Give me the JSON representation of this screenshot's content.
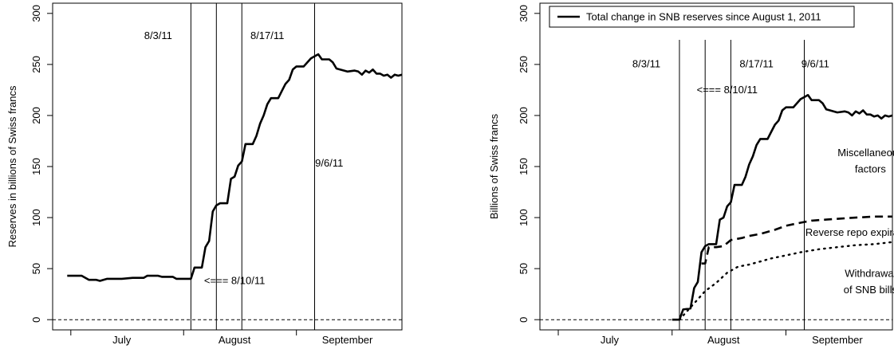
{
  "chart_data": [
    {
      "type": "line",
      "ylabel": "Reserves in billions of Swiss francs",
      "ylim": [
        -10,
        310
      ],
      "xlim": [
        "2011-06-26",
        "2011-09-30"
      ],
      "y_ticks": [
        0,
        50,
        100,
        150,
        200,
        250,
        300
      ],
      "x_tick_labels": [
        {
          "label": "July",
          "date": "2011-07-15"
        },
        {
          "label": "August",
          "date": "2011-08-15"
        },
        {
          "label": "September",
          "date": "2011-09-15"
        }
      ],
      "x_boundaries": [
        "2011-07-01",
        "2011-08-01",
        "2011-09-01"
      ],
      "zero_line": true,
      "vertical_lines": [
        "2011-08-03",
        "2011-08-10",
        "2011-08-17",
        "2011-09-06"
      ],
      "annotations": [
        {
          "text": "8/3/11",
          "x": "2011-07-25",
          "y": 275
        },
        {
          "text": "8/17/11",
          "x": "2011-08-24",
          "y": 275
        },
        {
          "text": "9/6/11",
          "x": "2011-09-10",
          "y": 150
        },
        {
          "text": "<=== 8/10/11",
          "x": "2011-08-15",
          "y": 35
        }
      ],
      "series": [
        {
          "style": "solid",
          "points": [
            [
              "2011-06-30",
              43
            ],
            [
              "2011-07-04",
              43
            ],
            [
              "2011-07-06",
              39
            ],
            [
              "2011-07-08",
              39
            ],
            [
              "2011-07-09",
              38
            ],
            [
              "2011-07-11",
              40
            ],
            [
              "2011-07-15",
              40
            ],
            [
              "2011-07-18",
              41
            ],
            [
              "2011-07-21",
              41
            ],
            [
              "2011-07-22",
              43
            ],
            [
              "2011-07-25",
              43
            ],
            [
              "2011-07-26",
              42
            ],
            [
              "2011-07-29",
              42
            ],
            [
              "2011-07-30",
              40
            ],
            [
              "2011-08-01",
              40
            ],
            [
              "2011-08-02",
              40
            ],
            [
              "2011-08-03",
              40
            ],
            [
              "2011-08-04",
              51
            ],
            [
              "2011-08-06",
              51
            ],
            [
              "2011-08-07",
              71
            ],
            [
              "2011-08-08",
              77
            ],
            [
              "2011-08-09",
              106
            ],
            [
              "2011-08-10",
              112
            ],
            [
              "2011-08-11",
              114
            ],
            [
              "2011-08-13",
              114
            ],
            [
              "2011-08-14",
              138
            ],
            [
              "2011-08-15",
              140
            ],
            [
              "2011-08-16",
              151
            ],
            [
              "2011-08-17",
              155
            ],
            [
              "2011-08-18",
              172
            ],
            [
              "2011-08-20",
              172
            ],
            [
              "2011-08-21",
              180
            ],
            [
              "2011-08-22",
              192
            ],
            [
              "2011-08-23",
              200
            ],
            [
              "2011-08-24",
              211
            ],
            [
              "2011-08-25",
              217
            ],
            [
              "2011-08-27",
              217
            ],
            [
              "2011-08-28",
              224
            ],
            [
              "2011-08-29",
              231
            ],
            [
              "2011-08-30",
              235
            ],
            [
              "2011-08-31",
              245
            ],
            [
              "2011-09-01",
              248
            ],
            [
              "2011-09-03",
              248
            ],
            [
              "2011-09-05",
              256
            ],
            [
              "2011-09-06",
              258
            ],
            [
              "2011-09-07",
              260
            ],
            [
              "2011-09-08",
              255
            ],
            [
              "2011-09-10",
              255
            ],
            [
              "2011-09-11",
              252
            ],
            [
              "2011-09-12",
              246
            ],
            [
              "2011-09-13",
              245
            ],
            [
              "2011-09-15",
              243
            ],
            [
              "2011-09-17",
              244
            ],
            [
              "2011-09-18",
              243
            ],
            [
              "2011-09-19",
              240
            ],
            [
              "2011-09-20",
              244
            ],
            [
              "2011-09-21",
              242
            ],
            [
              "2011-09-22",
              245
            ],
            [
              "2011-09-23",
              241
            ],
            [
              "2011-09-24",
              241
            ],
            [
              "2011-09-25",
              239
            ],
            [
              "2011-09-26",
              240
            ],
            [
              "2011-09-27",
              237
            ],
            [
              "2011-09-28",
              240
            ],
            [
              "2011-09-29",
              239
            ],
            [
              "2011-09-30",
              240
            ]
          ]
        }
      ]
    },
    {
      "type": "line",
      "ylabel": "Billions of Swiss francs",
      "ylim": [
        -10,
        310
      ],
      "xlim": [
        "2011-06-26",
        "2011-09-30"
      ],
      "y_ticks": [
        0,
        50,
        100,
        150,
        200,
        250,
        300
      ],
      "x_tick_labels": [
        {
          "label": "July",
          "date": "2011-07-15"
        },
        {
          "label": "August",
          "date": "2011-08-15"
        },
        {
          "label": "September",
          "date": "2011-09-15"
        }
      ],
      "x_boundaries": [
        "2011-07-01",
        "2011-08-01",
        "2011-09-01"
      ],
      "zero_line": true,
      "vertical_lines": [
        "2011-08-03",
        "2011-08-10",
        "2011-08-17",
        "2011-09-06"
      ],
      "legend": {
        "placement": "top",
        "entries": [
          {
            "label": "Total change in SNB reserves since August 1, 2011",
            "style": "solid"
          }
        ]
      },
      "annotations": [
        {
          "text": "8/3/11",
          "x": "2011-07-25",
          "y": 247
        },
        {
          "text": "8/17/11",
          "x": "2011-08-24",
          "y": 247
        },
        {
          "text": "9/6/11",
          "x": "2011-09-09",
          "y": 247
        },
        {
          "text": "<=== 8/10/11",
          "x": "2011-08-16",
          "y": 222
        },
        {
          "text": "Miscellaneous",
          "x": "2011-09-24",
          "y": 160
        },
        {
          "text": "factors",
          "x": "2011-09-24",
          "y": 144
        },
        {
          "text": "Reverse repo expirations",
          "x": "2011-09-22",
          "y": 82
        },
        {
          "text": "Withdrawal",
          "x": "2011-09-24",
          "y": 42
        },
        {
          "text": "of SNB bills",
          "x": "2011-09-24",
          "y": 26
        }
      ],
      "series": [
        {
          "name": "Total change in SNB reserves since August 1, 2011",
          "style": "solid",
          "points": [
            [
              "2011-08-01",
              0
            ],
            [
              "2011-08-02",
              0
            ],
            [
              "2011-08-03",
              0
            ],
            [
              "2011-08-04",
              10
            ],
            [
              "2011-08-06",
              11
            ],
            [
              "2011-08-07",
              31
            ],
            [
              "2011-08-08",
              37
            ],
            [
              "2011-08-09",
              66
            ],
            [
              "2011-08-10",
              72
            ],
            [
              "2011-08-11",
              74
            ],
            [
              "2011-08-13",
              74
            ],
            [
              "2011-08-14",
              98
            ],
            [
              "2011-08-15",
              100
            ],
            [
              "2011-08-16",
              111
            ],
            [
              "2011-08-17",
              115
            ],
            [
              "2011-08-18",
              132
            ],
            [
              "2011-08-20",
              132
            ],
            [
              "2011-08-21",
              140
            ],
            [
              "2011-08-22",
              152
            ],
            [
              "2011-08-23",
              160
            ],
            [
              "2011-08-24",
              171
            ],
            [
              "2011-08-25",
              177
            ],
            [
              "2011-08-27",
              177
            ],
            [
              "2011-08-28",
              184
            ],
            [
              "2011-08-29",
              191
            ],
            [
              "2011-08-30",
              195
            ],
            [
              "2011-08-31",
              205
            ],
            [
              "2011-09-01",
              208
            ],
            [
              "2011-09-03",
              208
            ],
            [
              "2011-09-05",
              216
            ],
            [
              "2011-09-06",
              218
            ],
            [
              "2011-09-07",
              220
            ],
            [
              "2011-09-08",
              215
            ],
            [
              "2011-09-10",
              215
            ],
            [
              "2011-09-11",
              212
            ],
            [
              "2011-09-12",
              206
            ],
            [
              "2011-09-13",
              205
            ],
            [
              "2011-09-15",
              203
            ],
            [
              "2011-09-17",
              204
            ],
            [
              "2011-09-18",
              203
            ],
            [
              "2011-09-19",
              200
            ],
            [
              "2011-09-20",
              204
            ],
            [
              "2011-09-21",
              202
            ],
            [
              "2011-09-22",
              205
            ],
            [
              "2011-09-23",
              201
            ],
            [
              "2011-09-24",
              201
            ],
            [
              "2011-09-25",
              199
            ],
            [
              "2011-09-26",
              200
            ],
            [
              "2011-09-27",
              197
            ],
            [
              "2011-09-28",
              200
            ],
            [
              "2011-09-29",
              199
            ],
            [
              "2011-09-30",
              200
            ]
          ]
        },
        {
          "name": "Reverse repo expirations",
          "style": "dashed",
          "points": [
            [
              "2011-08-09",
              55
            ],
            [
              "2011-08-10",
              55
            ],
            [
              "2011-08-11",
              71
            ],
            [
              "2011-08-13",
              71
            ],
            [
              "2011-08-15",
              72
            ],
            [
              "2011-08-17",
              78
            ],
            [
              "2011-08-20",
              80
            ],
            [
              "2011-08-22",
              82
            ],
            [
              "2011-08-25",
              84
            ],
            [
              "2011-08-29",
              88
            ],
            [
              "2011-09-01",
              92
            ],
            [
              "2011-09-05",
              95
            ],
            [
              "2011-09-08",
              97
            ],
            [
              "2011-09-12",
              98
            ],
            [
              "2011-09-16",
              99
            ],
            [
              "2011-09-20",
              100
            ],
            [
              "2011-09-25",
              101
            ],
            [
              "2011-09-30",
              101
            ]
          ]
        },
        {
          "name": "Withdrawal of SNB bills",
          "style": "dotted",
          "points": [
            [
              "2011-08-03",
              0
            ],
            [
              "2011-08-05",
              8
            ],
            [
              "2011-08-08",
              20
            ],
            [
              "2011-08-10",
              28
            ],
            [
              "2011-08-13",
              36
            ],
            [
              "2011-08-16",
              46
            ],
            [
              "2011-08-19",
              52
            ],
            [
              "2011-08-22",
              54
            ],
            [
              "2011-08-25",
              57
            ],
            [
              "2011-08-28",
              60
            ],
            [
              "2011-09-01",
              63
            ],
            [
              "2011-09-05",
              66
            ],
            [
              "2011-09-10",
              69
            ],
            [
              "2011-09-15",
              71
            ],
            [
              "2011-09-20",
              73
            ],
            [
              "2011-09-25",
              74
            ],
            [
              "2011-09-30",
              76
            ]
          ]
        }
      ]
    }
  ]
}
